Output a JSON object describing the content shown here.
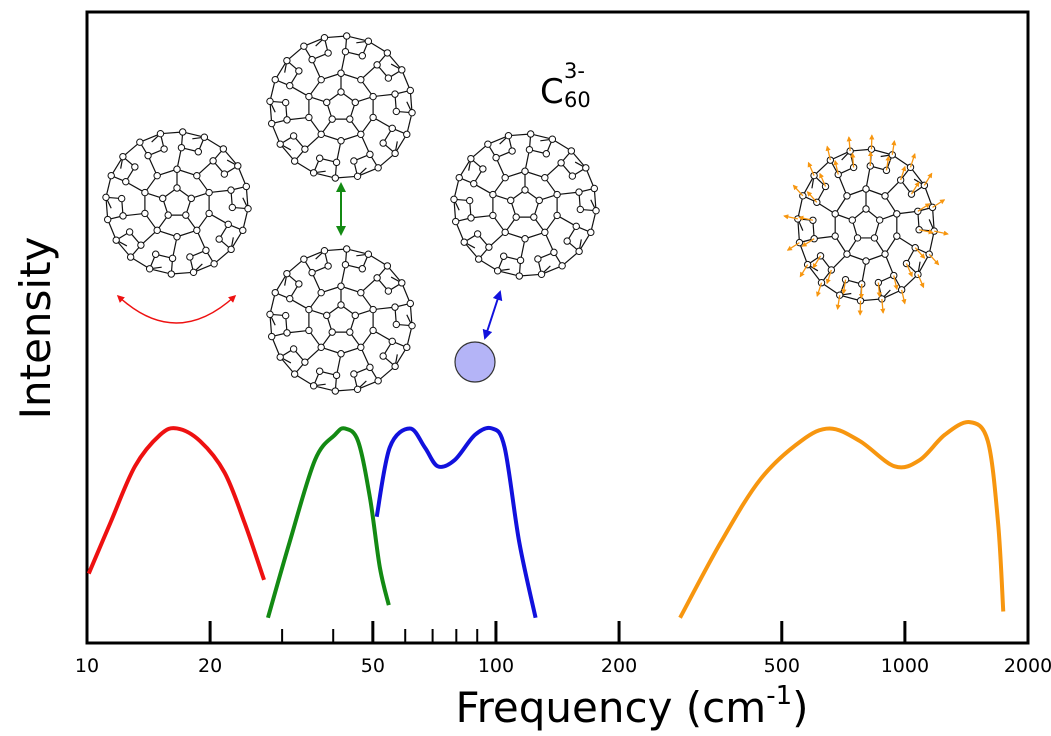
{
  "chart_data": {
    "type": "line",
    "y_label": "Intensity",
    "x_label": {
      "text": "Frequency (cm",
      "superscript": "-1",
      "suffix": ")"
    },
    "annotation": {
      "base": "C",
      "subscript": "60",
      "superscript": "3-"
    },
    "xscale": "log",
    "xlim": [
      10,
      2000
    ],
    "ylim": [
      0,
      1
    ],
    "xticks": [
      10,
      20,
      50,
      100,
      200,
      500,
      1000,
      2000
    ],
    "xminorticks": [
      30,
      40,
      60,
      70,
      80,
      90
    ],
    "series": [
      {
        "color": "#ee1111",
        "x": [
          10.1,
          11.4,
          13.1,
          15.1,
          16.6,
          18.9,
          21.7,
          24.3,
          27.1
        ],
        "values": [
          0.11,
          0.19,
          0.28,
          0.33,
          0.34,
          0.32,
          0.27,
          0.19,
          0.1
        ]
      },
      {
        "color": "#138a13",
        "x": [
          27.7,
          31.3,
          36.1,
          40.4,
          42.7,
          46.0,
          49.2,
          52.0,
          54.7
        ],
        "values": [
          0.04,
          0.16,
          0.29,
          0.33,
          0.34,
          0.32,
          0.23,
          0.12,
          0.06
        ]
      },
      {
        "color": "#1111dd",
        "x": [
          51.1,
          55.0,
          61.6,
          67.0,
          72.1,
          79.3,
          88.9,
          97.8,
          105,
          114,
          125
        ],
        "values": [
          0.2,
          0.31,
          0.34,
          0.31,
          0.28,
          0.29,
          0.33,
          0.34,
          0.31,
          0.16,
          0.04
        ]
      },
      {
        "color": "#f7960f",
        "x": [
          282,
          355,
          444,
          557,
          655,
          776,
          944,
          1087,
          1252,
          1440,
          1595,
          1690,
          1740
        ],
        "values": [
          0.04,
          0.16,
          0.26,
          0.32,
          0.34,
          0.32,
          0.28,
          0.29,
          0.33,
          0.35,
          0.32,
          0.19,
          0.05
        ]
      }
    ]
  }
}
